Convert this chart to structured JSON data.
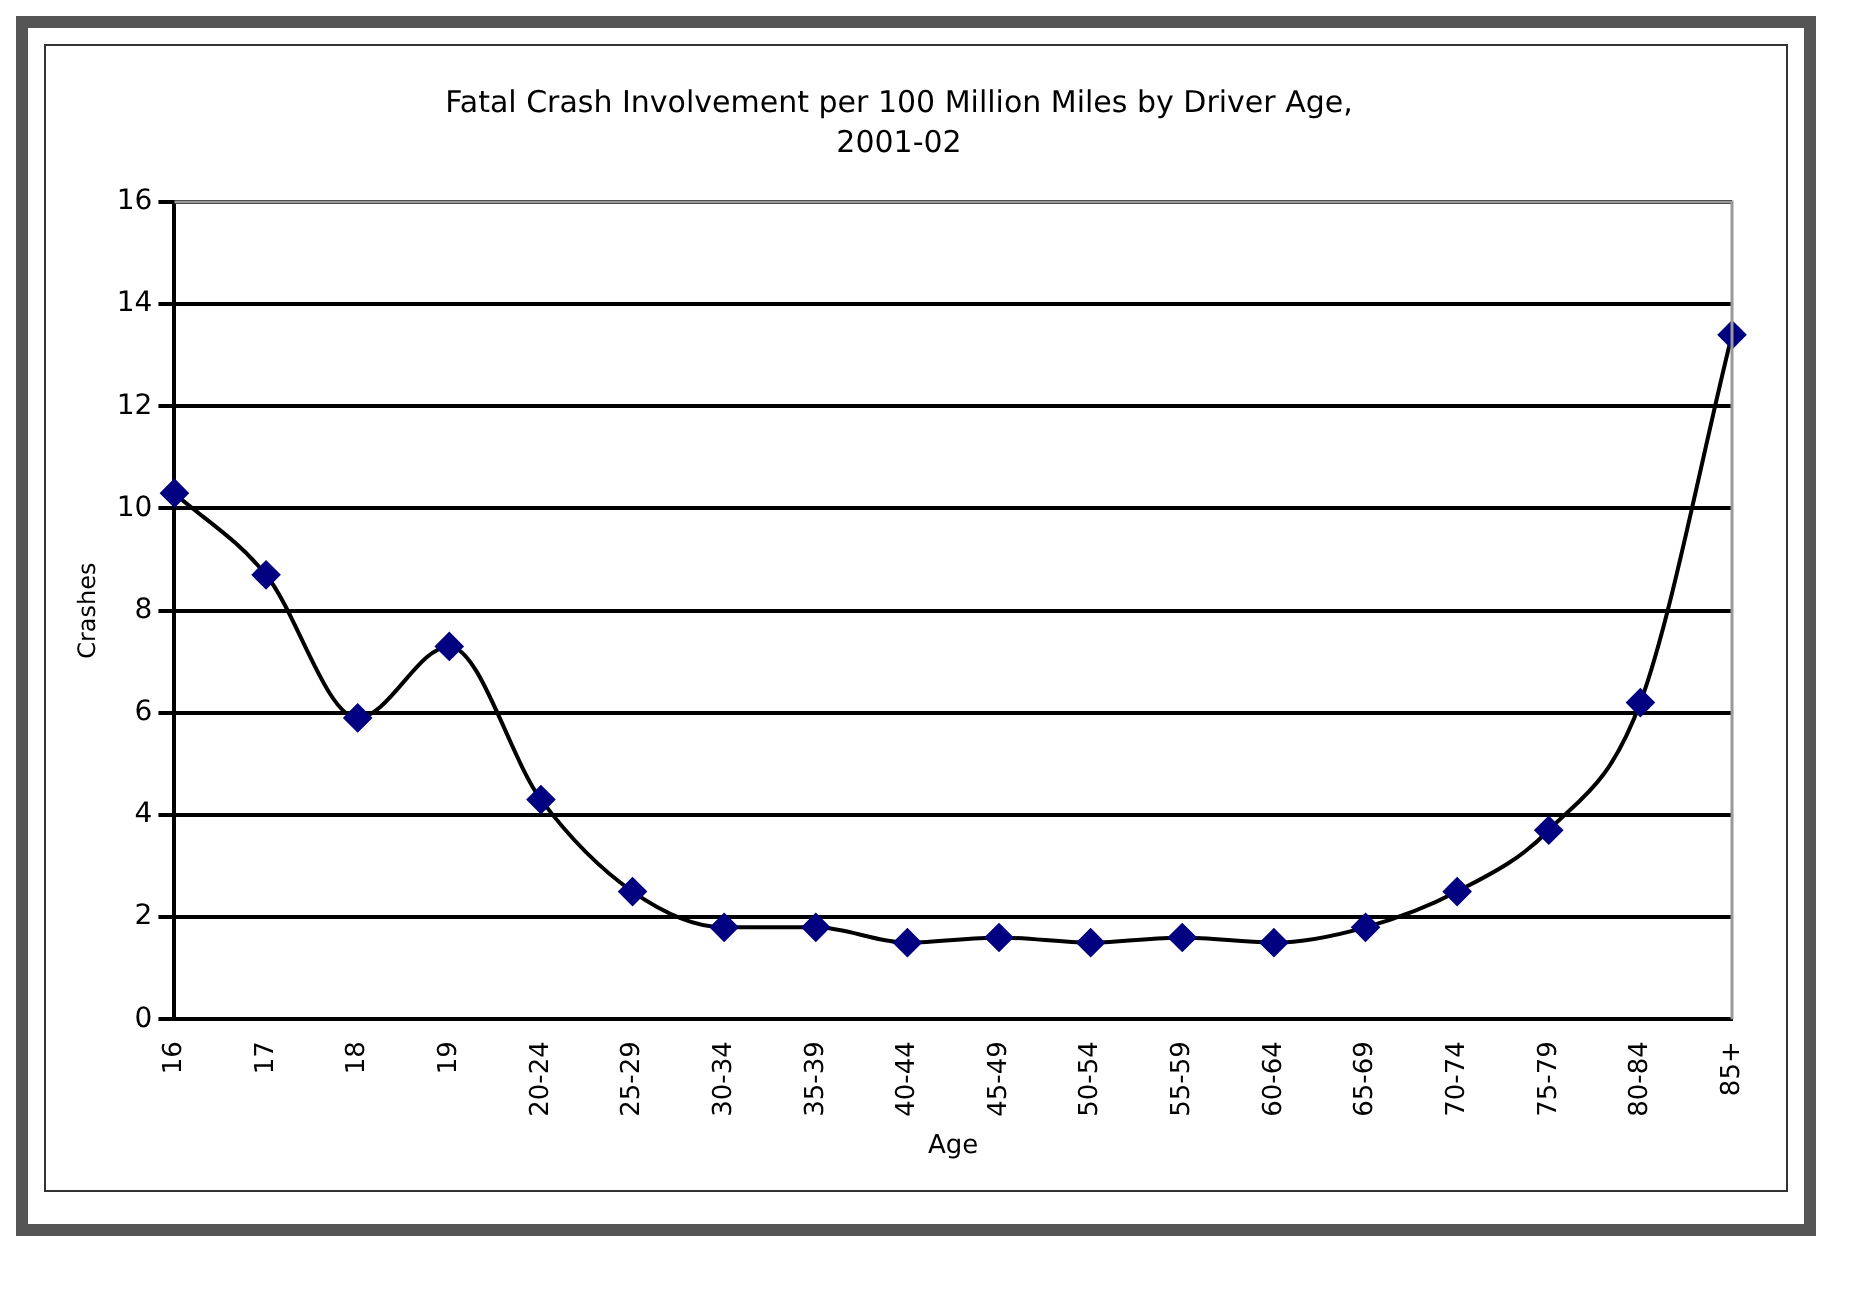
{
  "chart_data": {
    "type": "line",
    "title": "Fatal Crash Involvement per 100 Million Miles by Driver Age,",
    "subtitle": "2001-02",
    "xlabel": "Age",
    "ylabel": "Crashes",
    "categories": [
      "16",
      "17",
      "18",
      "19",
      "20-24",
      "25-29",
      "30-34",
      "35-39",
      "40-44",
      "45-49",
      "50-54",
      "55-59",
      "60-64",
      "65-69",
      "70-74",
      "75-79",
      "80-84",
      "85+"
    ],
    "series": [
      {
        "color": "#000080",
        "values": [
          10.3,
          8.7,
          5.9,
          7.3,
          4.3,
          2.5,
          1.8,
          1.8,
          1.5,
          1.6,
          1.5,
          1.6,
          1.5,
          1.8,
          2.5,
          3.7,
          6.2,
          13.4
        ]
      }
    ],
    "ylim": [
      0,
      16
    ],
    "yticks": [
      0,
      2,
      4,
      6,
      8,
      10,
      12,
      14,
      16
    ],
    "grid": "y",
    "legend": false,
    "marker": "diamond",
    "line_style": "solid"
  }
}
